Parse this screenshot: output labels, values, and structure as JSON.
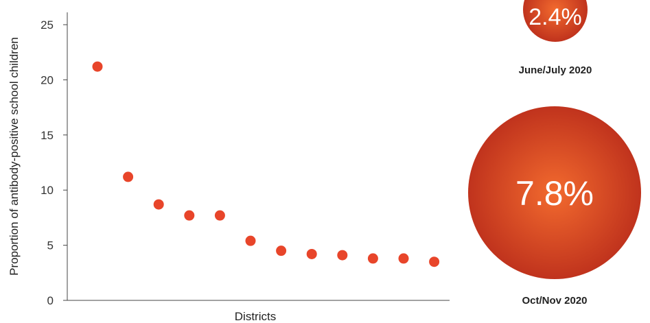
{
  "chart_data": [
    {
      "type": "scatter",
      "xlabel": "Districts",
      "ylabel": "Proportion of antibody-positive school children",
      "ylim": [
        0,
        25
      ],
      "yticks": [
        0,
        5,
        10,
        15,
        20,
        25
      ],
      "grid": false,
      "x": [
        1,
        2,
        3,
        4,
        5,
        6,
        7,
        8,
        9,
        10,
        11,
        12
      ],
      "y": [
        21.2,
        11.2,
        8.7,
        7.7,
        7.7,
        5.4,
        4.5,
        4.2,
        4.1,
        3.8,
        3.8,
        3.5
      ],
      "point_color": "#e8452a"
    },
    {
      "type": "bubble",
      "items": [
        {
          "value_label": "2.4%",
          "label": "June/July 2020",
          "value": 2.4
        },
        {
          "value_label": "7.8%",
          "label": "Oct/Nov 2020",
          "value": 7.8
        }
      ],
      "colors": {
        "inner": "#f26a2e",
        "outer": "#c0331d"
      }
    }
  ]
}
